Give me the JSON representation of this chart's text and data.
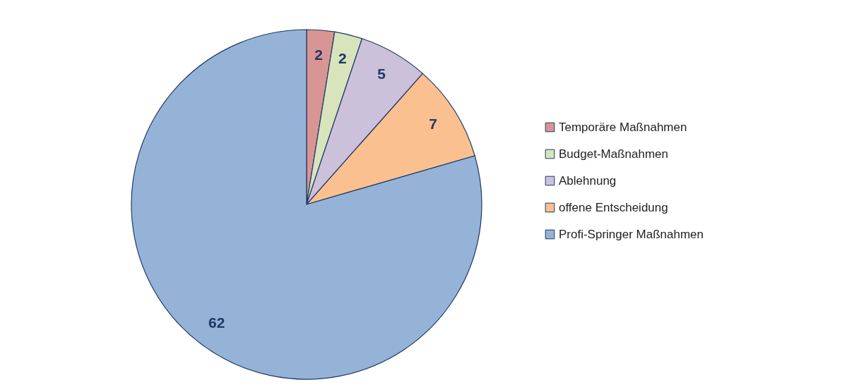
{
  "chart_data": {
    "type": "pie",
    "categories": [
      "Temporäre Maßnahmen",
      "Budget-Maßnahmen",
      "Ablehnung",
      "offene Entscheidung",
      "Profi-Springer Maßnahmen"
    ],
    "values": [
      2,
      2,
      5,
      7,
      62
    ],
    "colors": [
      "#d99594",
      "#d7e4bc",
      "#ccc1da",
      "#fac090",
      "#95b3d7"
    ],
    "data_labels": true,
    "legend": "right"
  }
}
